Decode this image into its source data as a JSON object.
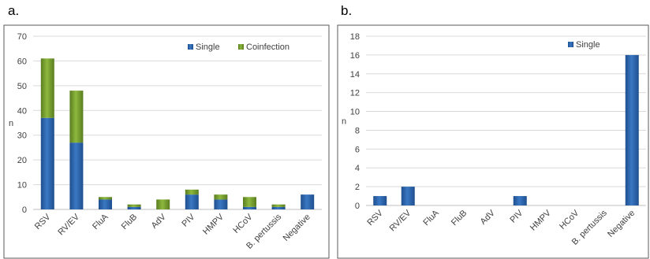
{
  "panels": [
    {
      "letter": "a."
    },
    {
      "letter": "b."
    }
  ],
  "colors": {
    "single": "#3a78c3",
    "single_dark": "#1f4f8f",
    "coinfection": "#8db83e",
    "coinfection_dark": "#5a7d1f"
  },
  "chart_data": [
    {
      "type": "bar",
      "stacked": true,
      "categories": [
        "RSV",
        "RV/EV",
        "FluA",
        "FluB",
        "AdV",
        "PIV",
        "HMPV",
        "HCoV",
        "B. pertussis",
        "Negative"
      ],
      "series": [
        {
          "name": "Single",
          "values": [
            37,
            27,
            4,
            1,
            0,
            6,
            4,
            1,
            1,
            6
          ]
        },
        {
          "name": "Coinfection",
          "values": [
            24,
            21,
            1,
            1,
            4,
            2,
            2,
            4,
            1,
            0
          ]
        }
      ],
      "ylabel": "n",
      "ylim": [
        0,
        70
      ],
      "yticks": [
        0,
        10,
        20,
        30,
        40,
        50,
        60,
        70
      ],
      "grid": true,
      "legend": "top-right"
    },
    {
      "type": "bar",
      "stacked": false,
      "categories": [
        "RSV",
        "RV/EV",
        "FluA",
        "FluB",
        "AdV",
        "PIV",
        "HMPV",
        "HCoV",
        "B. pertussis",
        "Negative"
      ],
      "series": [
        {
          "name": "Single",
          "values": [
            1,
            2,
            0,
            0,
            0,
            1,
            0,
            0,
            0,
            16
          ]
        }
      ],
      "ylabel": "n",
      "ylim": [
        0,
        18
      ],
      "yticks": [
        0,
        2,
        4,
        6,
        8,
        10,
        12,
        14,
        16,
        18
      ],
      "grid": true,
      "legend": "top-right"
    }
  ]
}
